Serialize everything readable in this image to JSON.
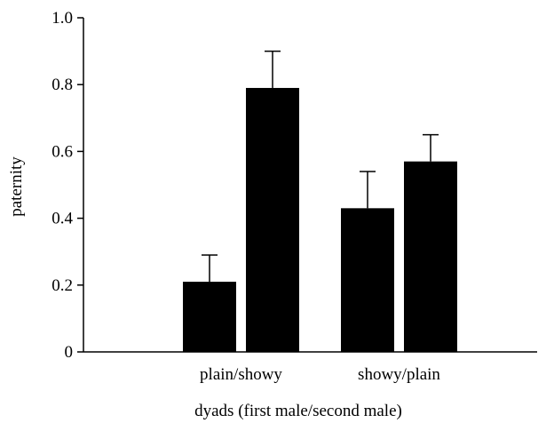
{
  "chart_data": {
    "type": "bar",
    "title": "",
    "xlabel": "dyads (first male/second male)",
    "ylabel": "paternity",
    "ylim": [
      0,
      1.0
    ],
    "yticks": [
      "0",
      "0.2",
      "0.4",
      "0.6",
      "0.8",
      "1.0"
    ],
    "grid": false,
    "groups": [
      {
        "label": "plain/showy",
        "bars": [
          {
            "value": 0.21,
            "error": 0.08
          },
          {
            "value": 0.79,
            "error": 0.11
          }
        ]
      },
      {
        "label": "showy/plain",
        "bars": [
          {
            "value": 0.43,
            "error": 0.11
          },
          {
            "value": 0.57,
            "error": 0.08
          }
        ]
      }
    ],
    "bar_color": "#000000"
  }
}
